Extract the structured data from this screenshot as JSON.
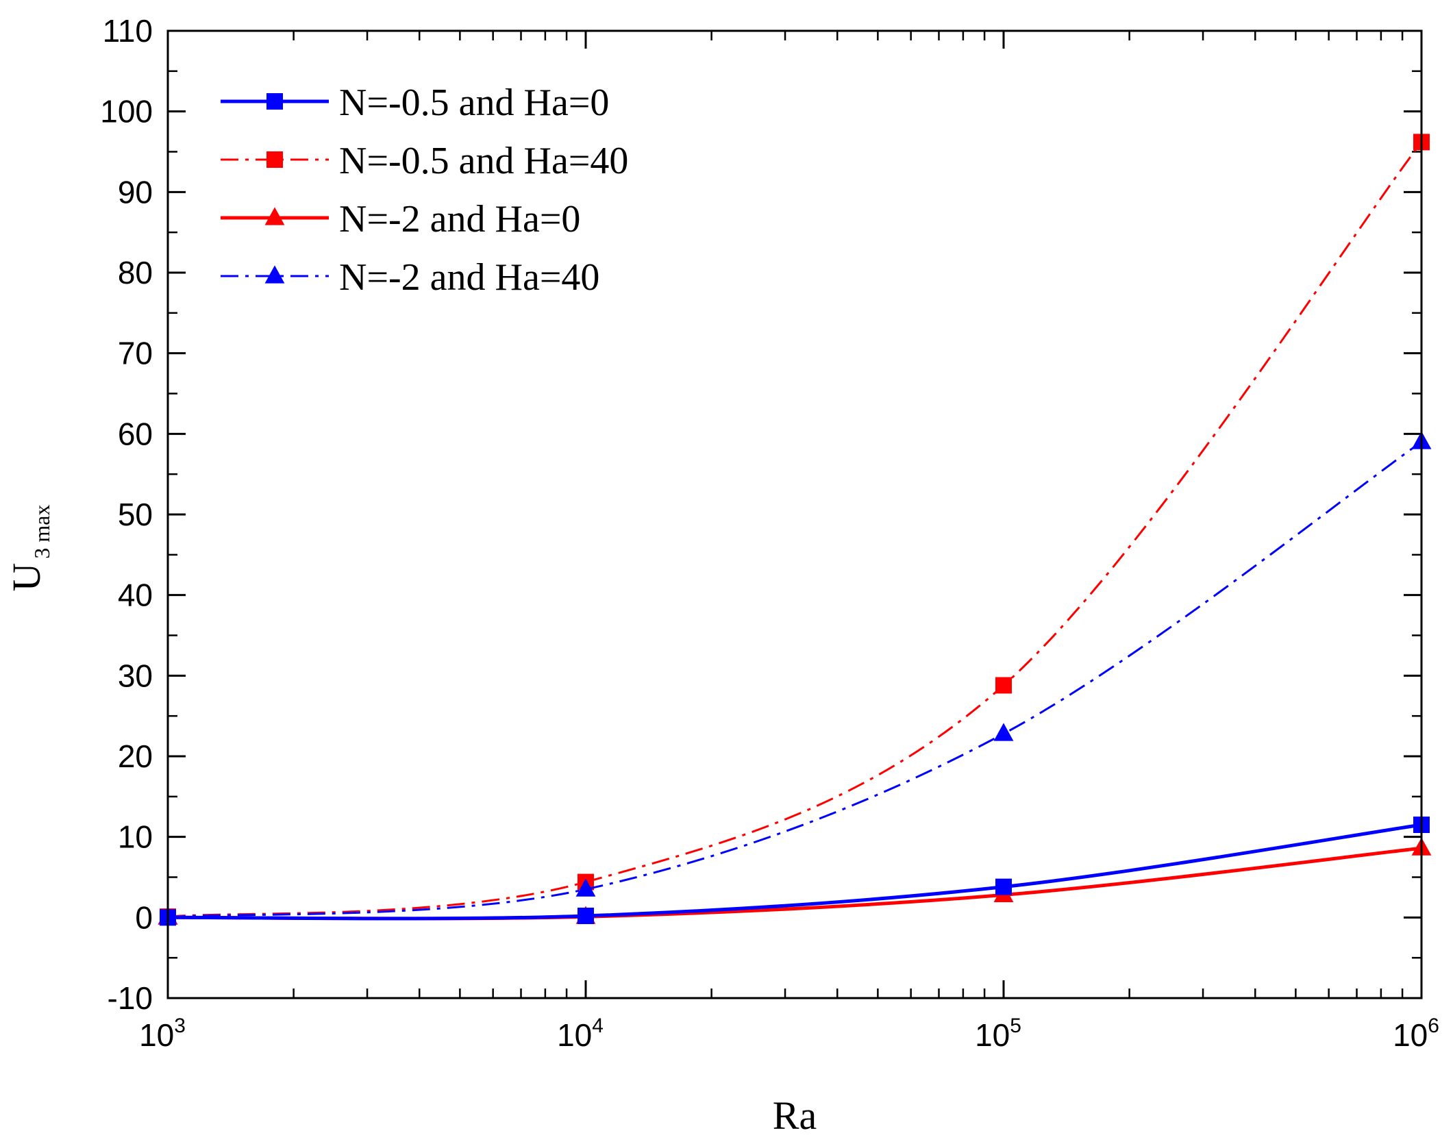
{
  "chart_data": {
    "type": "line",
    "title": "",
    "xlabel": "Ra",
    "ylabel": {
      "main": "U",
      "subscript": "3 max"
    },
    "xscale": "log",
    "xlim": [
      1000,
      1000000
    ],
    "ylim": [
      -10,
      110
    ],
    "grid": false,
    "legend_position": "top-left",
    "x_ticks": [
      {
        "value": 1000,
        "base": "10",
        "exp": "3"
      },
      {
        "value": 10000,
        "base": "10",
        "exp": "4"
      },
      {
        "value": 100000,
        "base": "10",
        "exp": "5"
      },
      {
        "value": 1000000,
        "base": "10",
        "exp": "6"
      }
    ],
    "y_ticks": [
      "-10",
      "0",
      "10",
      "20",
      "30",
      "40",
      "50",
      "60",
      "70",
      "80",
      "90",
      "100",
      "110"
    ],
    "x": [
      1000,
      10000,
      100000,
      1000000
    ],
    "series": [
      {
        "name": "N=-0.5 and Ha=0",
        "color": "#0000ff",
        "linestyle": "solid",
        "marker": "square",
        "values": [
          0,
          0.2,
          3.8,
          11.5
        ]
      },
      {
        "name": "N=-0.5 and Ha=40",
        "color": "#ff0000",
        "linestyle": "dashdot",
        "marker": "square",
        "values": [
          0.1,
          4.4,
          28.8,
          96.2
        ]
      },
      {
        "name": "N=-2 and Ha=0",
        "color": "#ff0000",
        "linestyle": "solid",
        "marker": "triangle",
        "values": [
          0,
          0.1,
          2.8,
          8.6
        ]
      },
      {
        "name": "N=-2 and Ha=40",
        "color": "#0000ff",
        "linestyle": "dashdot",
        "marker": "triangle",
        "values": [
          0.05,
          3.5,
          22.8,
          59.0
        ]
      }
    ]
  }
}
